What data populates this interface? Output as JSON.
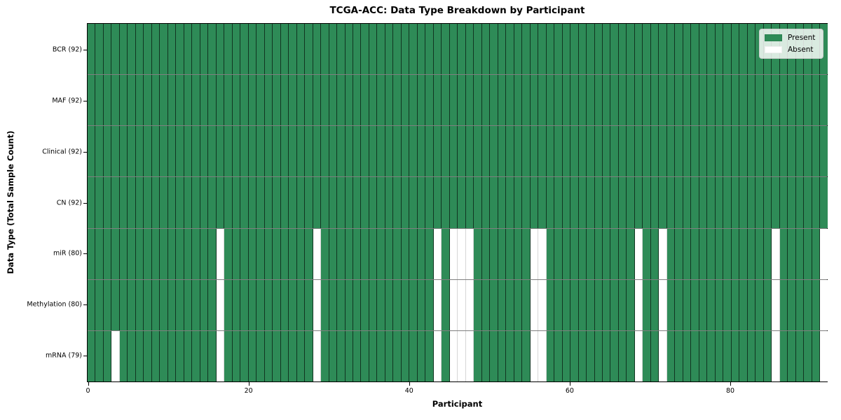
{
  "chart_data": {
    "type": "heatmap",
    "title": "TCGA-ACC: Data Type Breakdown by Participant",
    "xlabel": "Participant",
    "ylabel": "Data Type (Total Sample Count)",
    "n_participants": 92,
    "x_ticks": [
      0,
      20,
      40,
      60,
      80
    ],
    "x_range": [
      0,
      92
    ],
    "grid": true,
    "legend_position": "upper right",
    "rows": [
      {
        "label": "BCR (92)",
        "present_count": 92,
        "absent_participants": []
      },
      {
        "label": "MAF (92)",
        "present_count": 92,
        "absent_participants": []
      },
      {
        "label": "Clinical (92)",
        "present_count": 92,
        "absent_participants": []
      },
      {
        "label": "CN (92)",
        "present_count": 92,
        "absent_participants": []
      },
      {
        "label": "miR (80)",
        "present_count": 80,
        "absent_participants": [
          16,
          28,
          43,
          45,
          46,
          47,
          55,
          56,
          68,
          71,
          85,
          91
        ]
      },
      {
        "label": "Methylation (80)",
        "present_count": 80,
        "absent_participants": [
          16,
          28,
          43,
          45,
          46,
          47,
          55,
          56,
          68,
          71,
          85,
          91
        ]
      },
      {
        "label": "mRNA (79)",
        "present_count": 79,
        "absent_participants": [
          3,
          16,
          28,
          43,
          45,
          46,
          47,
          55,
          56,
          68,
          71,
          85,
          91
        ]
      }
    ],
    "legend": [
      {
        "label": "Present",
        "color": "#2e8b57"
      },
      {
        "label": "Absent",
        "color": "#ffffff"
      }
    ],
    "colors": {
      "present": "#2e8b57",
      "absent": "#ffffff",
      "edge": "#000000",
      "legend_border": "#cccccc"
    }
  }
}
